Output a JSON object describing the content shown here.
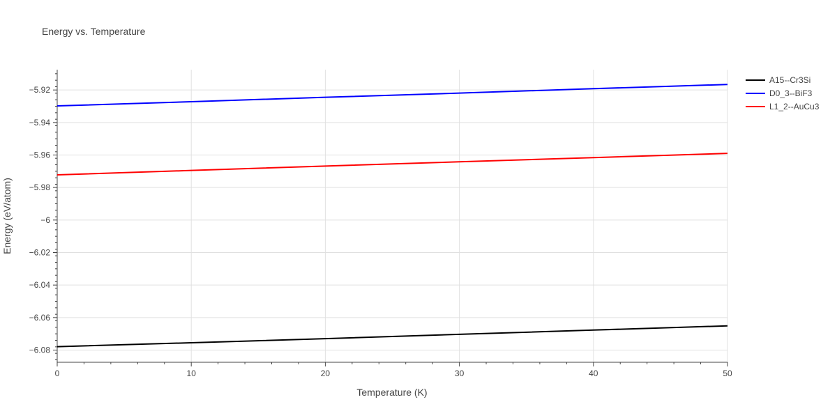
{
  "chart_data": {
    "type": "line",
    "title": "Energy vs. Temperature",
    "xlabel": "Temperature (K)",
    "ylabel": "Energy (eV/atom)",
    "xlim": [
      0,
      50
    ],
    "ylim": [
      -6.0875,
      -5.9075
    ],
    "x_ticks": [
      0,
      10,
      20,
      30,
      40,
      50
    ],
    "x_tick_labels": [
      "0",
      "10",
      "20",
      "30",
      "40",
      "50"
    ],
    "y_ticks": [
      -5.92,
      -5.94,
      -5.96,
      -5.98,
      -6.0,
      -6.02,
      -6.04,
      -6.06,
      -6.08
    ],
    "y_tick_labels": [
      "−5.92",
      "−5.94",
      "−5.96",
      "−5.98",
      "−6",
      "−6.02",
      "−6.04",
      "−6.06",
      "−6.08"
    ],
    "grid": true,
    "legend_position": "top-right",
    "series": [
      {
        "name": "A15--Cr3Si",
        "color": "#000000",
        "x": [
          0,
          10,
          20,
          30,
          40,
          50
        ],
        "y": [
          -6.0779,
          -6.0755,
          -6.073,
          -6.0703,
          -6.0677,
          -6.0651
        ]
      },
      {
        "name": "D0_3--BiF3",
        "color": "#0000ff",
        "x": [
          0,
          10,
          20,
          30,
          40,
          50
        ],
        "y": [
          -5.9298,
          -5.9272,
          -5.9245,
          -5.9219,
          -5.9192,
          -5.9166
        ]
      },
      {
        "name": "L1_2--AuCu3",
        "color": "#ff0000",
        "x": [
          0,
          10,
          20,
          30,
          40,
          50
        ],
        "y": [
          -5.9722,
          -5.9695,
          -5.9668,
          -5.9642,
          -5.9616,
          -5.959
        ]
      }
    ]
  }
}
